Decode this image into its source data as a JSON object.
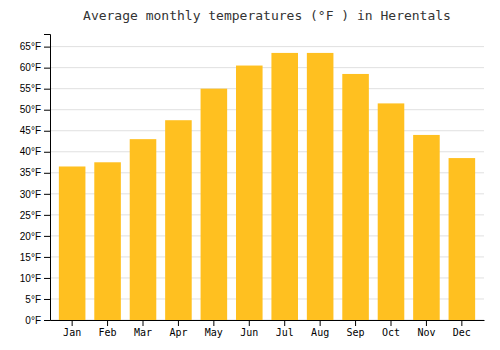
{
  "chart_data": {
    "type": "bar",
    "title": "Average monthly temperatures (°F ) in Herentals",
    "categories": [
      "Jan",
      "Feb",
      "Mar",
      "Apr",
      "May",
      "Jun",
      "Jul",
      "Aug",
      "Sep",
      "Oct",
      "Nov",
      "Dec"
    ],
    "values": [
      36.5,
      37.5,
      43.0,
      47.5,
      55.0,
      60.5,
      63.5,
      63.5,
      58.5,
      51.5,
      44.0,
      38.5
    ],
    "color": "#FFC020",
    "ylim": [
      0,
      68
    ],
    "yticks": [
      {
        "value": 0,
        "label": "0°F"
      },
      {
        "value": 5,
        "label": "5°F"
      },
      {
        "value": 10,
        "label": "10°F"
      },
      {
        "value": 15,
        "label": "15°F"
      },
      {
        "value": 20,
        "label": "20°F"
      },
      {
        "value": 25,
        "label": "25°F"
      },
      {
        "value": 30,
        "label": "30°F"
      },
      {
        "value": 35,
        "label": "35°F"
      },
      {
        "value": 40,
        "label": "40°F"
      },
      {
        "value": 45,
        "label": "45°F"
      },
      {
        "value": 50,
        "label": "50°F"
      },
      {
        "value": 55,
        "label": "55°F"
      },
      {
        "value": 60,
        "label": "60°F"
      },
      {
        "value": 65,
        "label": "65°F"
      }
    ],
    "grid": true
  }
}
